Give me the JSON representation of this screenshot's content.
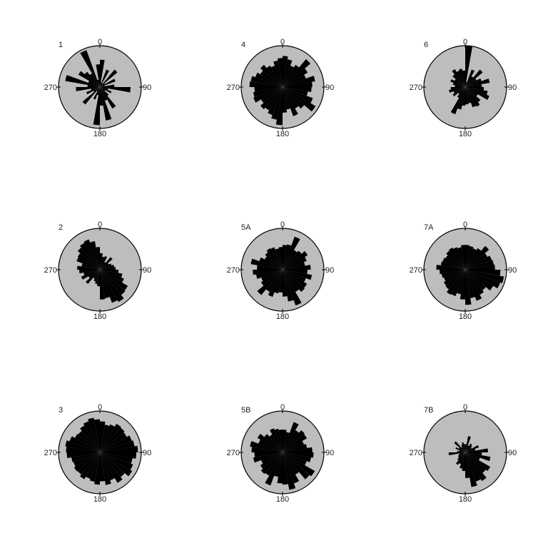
{
  "chart_data": {
    "type": "polar-bar",
    "description_note": "",
    "angle_ticks": [
      "0",
      "90",
      "180",
      "270"
    ],
    "bin_width_deg": 10,
    "style": {
      "disc_fill": "#bdbdbd",
      "bar_fill": "#000000",
      "outline": "#000000"
    },
    "plots": [
      {
        "label": "1",
        "radii": [
          0.66,
          0.12,
          0.45,
          0.1,
          0.55,
          0.14,
          0.4,
          0.12,
          0.35,
          0.74,
          0.2,
          0.3,
          0.15,
          0.28,
          0.6,
          0.35,
          0.82,
          0.45,
          0.92,
          0.2,
          0.32,
          0.12,
          0.55,
          0.18,
          0.35,
          0.22,
          0.58,
          0.3,
          0.85,
          0.3,
          0.6,
          0.48,
          0.38,
          0.95,
          0.18,
          0.55
        ]
      },
      {
        "label": "4",
        "radii": [
          0.75,
          0.68,
          0.55,
          0.62,
          0.88,
          0.7,
          0.6,
          0.8,
          0.72,
          0.7,
          0.62,
          0.78,
          0.92,
          0.68,
          0.6,
          0.75,
          0.55,
          0.62,
          0.92,
          0.8,
          0.72,
          0.65,
          0.7,
          0.6,
          0.75,
          0.72,
          0.68,
          0.8,
          0.78,
          0.7,
          0.62,
          0.7,
          0.6,
          0.55,
          0.65,
          0.7
        ]
      },
      {
        "label": "6",
        "radii": [
          1.0,
          0.12,
          0.45,
          0.3,
          0.55,
          0.32,
          0.42,
          0.6,
          0.4,
          0.45,
          0.55,
          0.62,
          0.35,
          0.48,
          0.55,
          0.52,
          0.4,
          0.42,
          0.45,
          0.55,
          0.7,
          0.3,
          0.22,
          0.35,
          0.3,
          0.4,
          0.35,
          0.25,
          0.3,
          0.38,
          0.3,
          0.4,
          0.5,
          0.42,
          0.45,
          0.4
        ]
      },
      {
        "label": "2",
        "radii": [
          0.4,
          0.32,
          0.35,
          0.22,
          0.4,
          0.25,
          0.3,
          0.35,
          0.38,
          0.45,
          0.55,
          0.62,
          0.78,
          0.8,
          0.9,
          0.85,
          0.7,
          0.72,
          0.4,
          0.35,
          0.3,
          0.25,
          0.45,
          0.32,
          0.48,
          0.4,
          0.5,
          0.55,
          0.45,
          0.6,
          0.62,
          0.7,
          0.75,
          0.78,
          0.7,
          0.55
        ]
      },
      {
        "label": "5A",
        "radii": [
          0.6,
          0.62,
          0.85,
          0.55,
          0.6,
          0.7,
          0.62,
          0.55,
          0.68,
          0.6,
          0.72,
          0.6,
          0.68,
          0.7,
          0.62,
          0.92,
          0.78,
          0.65,
          0.55,
          0.58,
          0.7,
          0.62,
          0.8,
          0.6,
          0.55,
          0.65,
          0.72,
          0.62,
          0.78,
          0.6,
          0.5,
          0.55,
          0.6,
          0.58,
          0.52,
          0.55
        ]
      },
      {
        "label": "7A",
        "radii": [
          0.6,
          0.58,
          0.55,
          0.6,
          0.75,
          0.62,
          0.68,
          0.7,
          0.72,
          0.85,
          0.95,
          0.9,
          0.78,
          0.65,
          0.7,
          0.8,
          0.7,
          0.85,
          0.72,
          0.6,
          0.68,
          0.7,
          0.62,
          0.6,
          0.55,
          0.58,
          0.62,
          0.7,
          0.6,
          0.58,
          0.55,
          0.6,
          0.62,
          0.58,
          0.55,
          0.6
        ]
      },
      {
        "label": "3",
        "radii": [
          0.75,
          0.68,
          0.72,
          0.8,
          0.78,
          0.75,
          0.82,
          0.85,
          0.92,
          0.88,
          0.8,
          0.85,
          0.9,
          0.78,
          0.85,
          0.72,
          0.8,
          0.7,
          0.78,
          0.72,
          0.68,
          0.75,
          0.7,
          0.72,
          0.68,
          0.7,
          0.8,
          0.82,
          0.85,
          0.78,
          0.7,
          0.68,
          0.75,
          0.8,
          0.85,
          0.8
        ]
      },
      {
        "label": "5B",
        "radii": [
          0.55,
          0.5,
          0.78,
          0.62,
          0.7,
          0.68,
          0.55,
          0.6,
          0.72,
          0.75,
          0.7,
          0.62,
          0.9,
          0.85,
          0.62,
          0.8,
          0.92,
          0.78,
          0.75,
          0.6,
          0.85,
          0.65,
          0.68,
          0.62,
          0.55,
          0.72,
          0.68,
          0.75,
          0.8,
          0.62,
          0.7,
          0.58,
          0.5,
          0.62,
          0.58,
          0.55
        ]
      },
      {
        "label": "7B",
        "radii": [
          0.2,
          0.4,
          0.18,
          0.25,
          0.22,
          0.18,
          0.35,
          0.25,
          0.55,
          0.4,
          0.62,
          0.38,
          0.7,
          0.65,
          0.8,
          0.75,
          0.85,
          0.62,
          0.45,
          0.4,
          0.3,
          0.35,
          0.25,
          0.2,
          0.18,
          0.15,
          0.4,
          0.2,
          0.15,
          0.25,
          0.18,
          0.35,
          0.15,
          0.2,
          0.25,
          0.2
        ]
      }
    ]
  }
}
